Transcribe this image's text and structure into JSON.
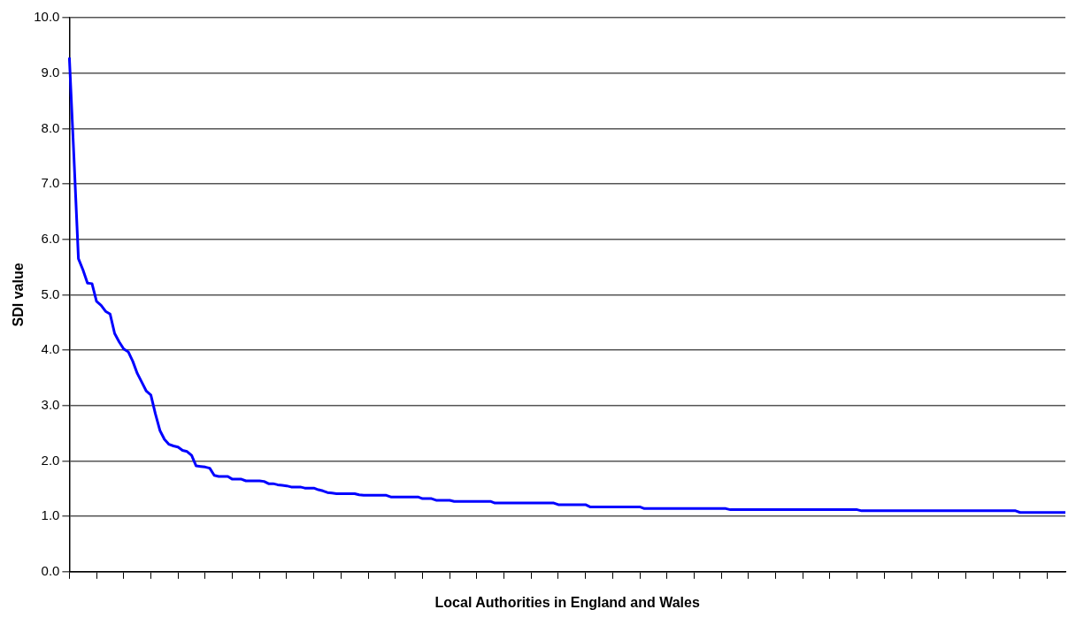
{
  "chart_data": {
    "type": "line",
    "xlabel": "Local Authorities in England and Wales",
    "ylabel": "SDI value",
    "categories": [
      null,
      null,
      null,
      null,
      null,
      null,
      null,
      null,
      null,
      null,
      null,
      null,
      null,
      null,
      null,
      null,
      null,
      null,
      null,
      null,
      null,
      null,
      null,
      null,
      null,
      null,
      null,
      null,
      null,
      null,
      null,
      null,
      null,
      null,
      null,
      null,
      null,
      null,
      null,
      null,
      null,
      null,
      null,
      null,
      null,
      null,
      null,
      null,
      null,
      null,
      null,
      null,
      null,
      null,
      null,
      null,
      null,
      null,
      null,
      null,
      null,
      null,
      null,
      null,
      null,
      null,
      null,
      null,
      null,
      null,
      null,
      null,
      null,
      null,
      null,
      null,
      null,
      null,
      null,
      null,
      null,
      null,
      null,
      null,
      null,
      null,
      null,
      null,
      null,
      null,
      null,
      null,
      null,
      null,
      null,
      null,
      null,
      null,
      null,
      null,
      null,
      null,
      null,
      null,
      null,
      null,
      null,
      null,
      null,
      null,
      null,
      null,
      null,
      null,
      null,
      null,
      null,
      null,
      null,
      null,
      null,
      null,
      null,
      null,
      null,
      null,
      null,
      null,
      null,
      null,
      null,
      null,
      null,
      null,
      null,
      null,
      null,
      null,
      null,
      null,
      null,
      null,
      null,
      null,
      null,
      null,
      null,
      null,
      null,
      null,
      null,
      null,
      null,
      null,
      null,
      null,
      null,
      null,
      null,
      null,
      null,
      null,
      null,
      null,
      null,
      null,
      null,
      null,
      null,
      null,
      null,
      null,
      null,
      null,
      null,
      null,
      null,
      null,
      null,
      null,
      null,
      null,
      null,
      null,
      null,
      null,
      null,
      null,
      null,
      null,
      null,
      null,
      null,
      null,
      null,
      null,
      null,
      null,
      null,
      null,
      null,
      null,
      null,
      null,
      null,
      null,
      null,
      null,
      null,
      null,
      null,
      null,
      null,
      null,
      null,
      null,
      null,
      null,
      null,
      null,
      null
    ],
    "series": [
      {
        "color": "#0000ff",
        "values": [
          9.28,
          7.5,
          5.65,
          5.45,
          5.21,
          5.2,
          4.88,
          4.81,
          4.7,
          4.65,
          4.3,
          4.15,
          4.02,
          3.97,
          3.8,
          3.58,
          3.42,
          3.26,
          3.19,
          2.85,
          2.55,
          2.39,
          2.3,
          2.27,
          2.25,
          2.19,
          2.17,
          2.1,
          1.91,
          1.9,
          1.89,
          1.87,
          1.74,
          1.72,
          1.72,
          1.72,
          1.67,
          1.67,
          1.67,
          1.64,
          1.64,
          1.64,
          1.64,
          1.63,
          1.59,
          1.59,
          1.57,
          1.56,
          1.55,
          1.53,
          1.53,
          1.53,
          1.51,
          1.51,
          1.51,
          1.48,
          1.46,
          1.43,
          1.42,
          1.41,
          1.41,
          1.41,
          1.41,
          1.41,
          1.39,
          1.38,
          1.38,
          1.38,
          1.38,
          1.38,
          1.38,
          1.35,
          1.35,
          1.35,
          1.35,
          1.35,
          1.35,
          1.35,
          1.32,
          1.32,
          1.32,
          1.29,
          1.29,
          1.29,
          1.29,
          1.27,
          1.27,
          1.27,
          1.27,
          1.27,
          1.27,
          1.27,
          1.27,
          1.27,
          1.24,
          1.24,
          1.24,
          1.24,
          1.24,
          1.24,
          1.24,
          1.24,
          1.24,
          1.24,
          1.24,
          1.24,
          1.24,
          1.24,
          1.21,
          1.21,
          1.21,
          1.21,
          1.21,
          1.21,
          1.21,
          1.17,
          1.17,
          1.17,
          1.17,
          1.17,
          1.17,
          1.17,
          1.17,
          1.17,
          1.17,
          1.17,
          1.17,
          1.14,
          1.14,
          1.14,
          1.14,
          1.14,
          1.14,
          1.14,
          1.14,
          1.14,
          1.14,
          1.14,
          1.14,
          1.14,
          1.14,
          1.14,
          1.14,
          1.14,
          1.14,
          1.14,
          1.12,
          1.12,
          1.12,
          1.12,
          1.12,
          1.12,
          1.12,
          1.12,
          1.12,
          1.12,
          1.12,
          1.12,
          1.12,
          1.12,
          1.12,
          1.12,
          1.12,
          1.12,
          1.12,
          1.12,
          1.12,
          1.12,
          1.12,
          1.12,
          1.12,
          1.12,
          1.12,
          1.12,
          1.12,
          1.1,
          1.1,
          1.1,
          1.1,
          1.1,
          1.1,
          1.1,
          1.1,
          1.1,
          1.1,
          1.1,
          1.1,
          1.1,
          1.1,
          1.1,
          1.1,
          1.1,
          1.1,
          1.1,
          1.1,
          1.1,
          1.1,
          1.1,
          1.1,
          1.1,
          1.1,
          1.1,
          1.1,
          1.1,
          1.1,
          1.1,
          1.1,
          1.1,
          1.1,
          1.1,
          1.07,
          1.07,
          1.07,
          1.07,
          1.07,
          1.07,
          1.07,
          1.07,
          1.07,
          1.07,
          1.07
        ]
      }
    ],
    "ylim": [
      0,
      10
    ],
    "yticks": [
      {
        "value": 0,
        "label": "0.0"
      },
      {
        "value": 1,
        "label": "1.0"
      },
      {
        "value": 2,
        "label": "2.0"
      },
      {
        "value": 3,
        "label": "3.0"
      },
      {
        "value": 4,
        "label": "4.0"
      },
      {
        "value": 5,
        "label": "5.0"
      },
      {
        "value": 6,
        "label": "6.0"
      },
      {
        "value": 7,
        "label": "7.0"
      },
      {
        "value": 8,
        "label": "8.0"
      },
      {
        "value": 9,
        "label": "9.0"
      },
      {
        "value": 10,
        "label": "10.0"
      }
    ],
    "grid": "y",
    "legend": false,
    "tick_labels": "y",
    "marker": "none",
    "line_style": "solid"
  }
}
